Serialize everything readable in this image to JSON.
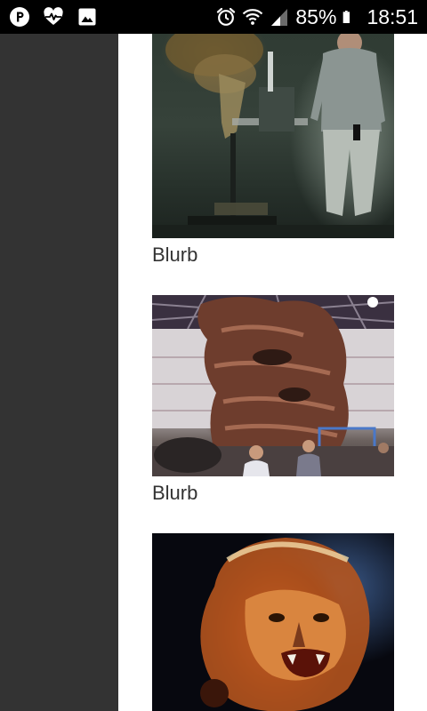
{
  "status_bar": {
    "battery_percent": "85%",
    "time": "18:51",
    "left_icons": [
      "p-app-icon",
      "health-heart-icon",
      "image-icon"
    ],
    "right_icons": [
      "alarm-icon",
      "wifi-icon",
      "signal-icon",
      "battery-icon"
    ]
  },
  "colors": {
    "status_bar_bg": "#000000",
    "drawer_bg": "#333333",
    "content_bg": "#ffffff",
    "caption_text": "#333333"
  },
  "gallery": {
    "items": [
      {
        "image": "lion-puppet-workshop-photo",
        "caption": "Blurb"
      },
      {
        "image": "rock-sculpture-warehouse-photo",
        "caption": "Blurb"
      },
      {
        "image": "lion-head-photo",
        "caption": ""
      }
    ]
  }
}
